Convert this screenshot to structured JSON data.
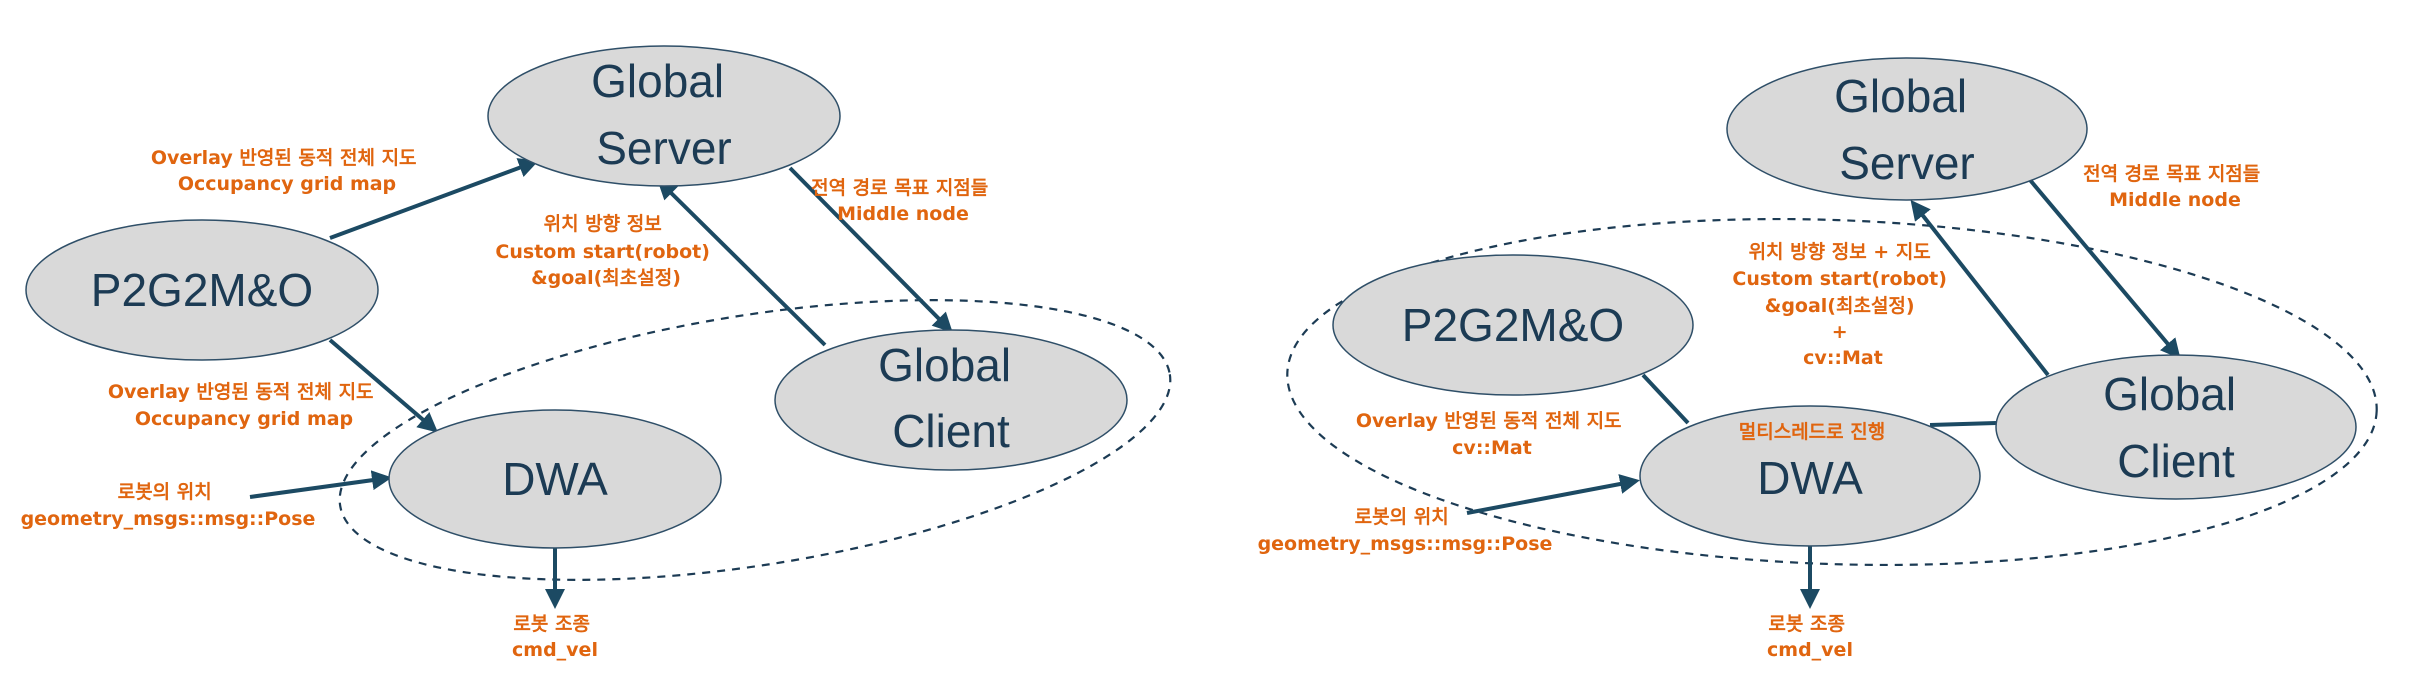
{
  "left_diagram": {
    "nodes": {
      "global_server": [
        "Global",
        "Server"
      ],
      "p2g2mo": [
        "P2G2M&O"
      ],
      "global_client": [
        "Global",
        "Client"
      ],
      "dwa": [
        "DWA"
      ]
    },
    "labels": {
      "overlay_to_server": [
        "Overlay 반영된 동적 전체 지도",
        "Occupancy grid map"
      ],
      "overlay_to_dwa": [
        "Overlay 반영된 동적 전체 지도",
        "Occupancy grid map"
      ],
      "position_direction": [
        "위치 방향 정보",
        "Custom start(robot)",
        "&goal(최초설정)"
      ],
      "global_waypoints": [
        "전역 경로 목표 지점들",
        "Middle node"
      ],
      "robot_position": [
        "로봇의 위치",
        "geometry_msgs::msg::Pose"
      ],
      "robot_control": [
        "로봇 조종",
        "cmd_vel"
      ]
    }
  },
  "right_diagram": {
    "nodes": {
      "global_server": [
        "Global",
        "Server"
      ],
      "p2g2mo": [
        "P2G2M&O"
      ],
      "global_client": [
        "Global",
        "Client"
      ],
      "dwa": [
        "DWA"
      ]
    },
    "labels": {
      "global_waypoints": [
        "전역 경로 목표 지점들",
        "Middle node"
      ],
      "position_direction_map": [
        "위치 방향 정보 + 지도",
        "Custom start(robot)",
        "&goal(최초설정)",
        "+",
        "cv::Mat"
      ],
      "overlay_map": [
        "Overlay 반영된 동적 전체 지도",
        "cv::Mat"
      ],
      "multithread": [
        "멀티스레드로 진행"
      ],
      "robot_position": [
        "로봇의 위치",
        "geometry_msgs::msg::Pose"
      ],
      "robot_control": [
        "로봇 조종",
        "cmd_vel"
      ]
    }
  },
  "colors": {
    "node_fill": "#d9d9d9",
    "node_text": "#1c3b54",
    "arrow": "#1c4a63",
    "label_text": "#e0650f"
  }
}
